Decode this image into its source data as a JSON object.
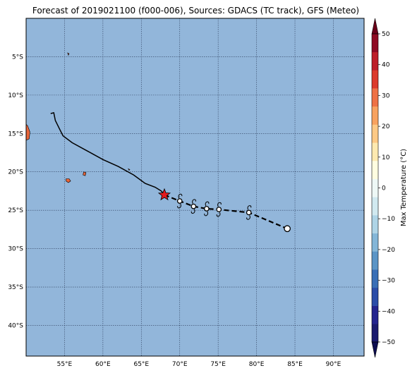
{
  "title": "Forecast of 2019021100 (f000-006), Sources: GDACS (TC track), GFS (Meteo)",
  "colors": {
    "ocean": "#92b6da",
    "land": "#e8653a",
    "grid": "#2e3f5e",
    "track_past": "#000000",
    "track_forecast": "#000000",
    "current_position": "#e31a1c"
  },
  "map": {
    "lon_range": [
      50,
      94
    ],
    "lat_range": [
      -44,
      0
    ],
    "lat_ticks": [
      {
        "value": -5,
        "label": "5°S"
      },
      {
        "value": -10,
        "label": "10°S"
      },
      {
        "value": -15,
        "label": "15°S"
      },
      {
        "value": -20,
        "label": "20°S"
      },
      {
        "value": -25,
        "label": "25°S"
      },
      {
        "value": -30,
        "label": "30°S"
      },
      {
        "value": -35,
        "label": "35°S"
      },
      {
        "value": -40,
        "label": "40°S"
      }
    ],
    "lon_ticks": [
      {
        "value": 55,
        "label": "55°E"
      },
      {
        "value": 60,
        "label": "60°E"
      },
      {
        "value": 65,
        "label": "65°E"
      },
      {
        "value": 70,
        "label": "70°E"
      },
      {
        "value": 75,
        "label": "75°E"
      },
      {
        "value": 80,
        "label": "80°E"
      },
      {
        "value": 85,
        "label": "85°E"
      },
      {
        "value": 90,
        "label": "90°E"
      }
    ],
    "past_track": [
      [
        53.2,
        -12.4
      ],
      [
        53.6,
        -12.3
      ],
      [
        53.8,
        -13.3
      ],
      [
        54.4,
        -14.5
      ],
      [
        54.8,
        -15.3
      ],
      [
        56.0,
        -16.2
      ],
      [
        58.0,
        -17.3
      ],
      [
        60.0,
        -18.4
      ],
      [
        62.0,
        -19.3
      ],
      [
        64.0,
        -20.4
      ],
      [
        65.5,
        -21.5
      ],
      [
        66.8,
        -22.0
      ],
      [
        67.6,
        -22.5
      ],
      [
        68.0,
        -23.0
      ]
    ],
    "current_position": [
      68.0,
      -23.0
    ],
    "forecast_points": [
      [
        70.0,
        -23.8
      ],
      [
        71.8,
        -24.5
      ],
      [
        73.5,
        -24.8
      ],
      [
        75.1,
        -24.9
      ],
      [
        79.0,
        -25.3
      ]
    ],
    "forecast_end": [
      84.0,
      -27.4
    ],
    "islands": [
      {
        "name": "Madagascar",
        "points": [
          [
            50.0,
            -13.8
          ],
          [
            50.2,
            -14.0
          ],
          [
            50.5,
            -14.8
          ],
          [
            50.4,
            -15.7
          ],
          [
            50.0,
            -15.9
          ]
        ]
      },
      {
        "name": "Reunion",
        "points": [
          [
            55.2,
            -20.9
          ],
          [
            55.6,
            -20.9
          ],
          [
            55.8,
            -21.2
          ],
          [
            55.5,
            -21.4
          ],
          [
            55.2,
            -21.2
          ]
        ]
      },
      {
        "name": "Mauritius",
        "points": [
          [
            57.5,
            -20.0
          ],
          [
            57.8,
            -20.1
          ],
          [
            57.7,
            -20.5
          ],
          [
            57.4,
            -20.4
          ]
        ]
      },
      {
        "name": "Rodrigues",
        "points": [
          [
            63.3,
            -19.6
          ],
          [
            63.5,
            -19.7
          ],
          [
            63.4,
            -19.8
          ]
        ]
      },
      {
        "name": "Seychelles",
        "points": [
          [
            55.4,
            -4.5
          ],
          [
            55.6,
            -4.6
          ],
          [
            55.5,
            -4.8
          ]
        ]
      }
    ]
  },
  "colorbar": {
    "label": "Max Temperature (°C)",
    "min": -50,
    "max": 50,
    "ticks": [
      {
        "value": 50,
        "label": "50"
      },
      {
        "value": 40,
        "label": "40"
      },
      {
        "value": 30,
        "label": "30"
      },
      {
        "value": 20,
        "label": "20"
      },
      {
        "value": 10,
        "label": "10"
      },
      {
        "value": 0,
        "label": "0"
      },
      {
        "value": -10,
        "label": "−10"
      },
      {
        "value": -20,
        "label": "−20"
      },
      {
        "value": -30,
        "label": "−30"
      },
      {
        "value": -40,
        "label": "−40"
      },
      {
        "value": -50,
        "label": "−50"
      }
    ],
    "bands": [
      "#1a1a6e",
      "#23238e",
      "#2b4da8",
      "#3a6fb6",
      "#5b95c6",
      "#84b6d8",
      "#aed4e6",
      "#d1e9f0",
      "#eef8f6",
      "#fffde0",
      "#fee9b0",
      "#fdc985",
      "#f8a25f",
      "#ee7145",
      "#dc3a2c",
      "#bd1d28",
      "#8f0a22"
    ],
    "under_color": "#0d0d50",
    "over_color": "#6a0019"
  }
}
